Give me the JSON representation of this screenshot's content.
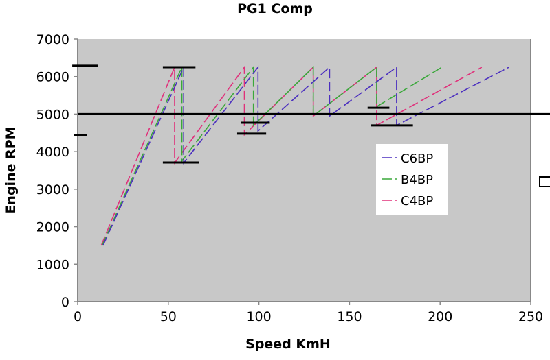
{
  "chart_data": {
    "type": "line",
    "title": "PG1 Comp",
    "xlabel": "Speed KmH",
    "ylabel": "Engine RPM",
    "xlim": [
      0,
      250
    ],
    "ylim": [
      0,
      7000
    ],
    "xticks": [
      "0",
      "50",
      "100",
      "150",
      "200",
      "250"
    ],
    "yticks": [
      "0",
      "1000",
      "2000",
      "3000",
      "4000",
      "5000",
      "6000",
      "7000"
    ],
    "grid": false,
    "plot_background": "#c8c8c8",
    "legend": {
      "position": "right",
      "entries": [
        "C6BP",
        "B4BP",
        "C4BP"
      ]
    },
    "series": [
      {
        "name": "C6BP",
        "color": "#4b2fbf",
        "x": [
          14,
          58.5,
          58.5,
          99.5,
          99.5,
          139,
          139,
          176,
          176,
          238
        ],
        "y": [
          1500,
          6250,
          3700,
          6250,
          4550,
          6250,
          4950,
          6250,
          4700,
          6250
        ]
      },
      {
        "name": "B4BP",
        "color": "#3aa83a",
        "x": [
          13.5,
          57.5,
          57.5,
          97,
          97,
          130,
          130,
          165,
          165,
          201
        ],
        "y": [
          1500,
          6250,
          3750,
          6250,
          4700,
          6250,
          4950,
          6250,
          5200,
          6250
        ]
      },
      {
        "name": "C4BP",
        "color": "#e0307a",
        "x": [
          13,
          53.5,
          53.5,
          92,
          92,
          130,
          130,
          165,
          165,
          223
        ],
        "y": [
          1500,
          6250,
          3700,
          6250,
          4450,
          6250,
          4950,
          6250,
          4700,
          6250
        ]
      }
    ],
    "reference_line": {
      "y": 5000,
      "color": "#000000"
    },
    "markers": [
      {
        "x1": -3,
        "x2": 11,
        "y": 6290
      },
      {
        "x1": -2,
        "x2": 5,
        "y": 4440
      },
      {
        "x1": 47,
        "x2": 65,
        "y": 6250
      },
      {
        "x1": 47,
        "x2": 67,
        "y": 3710
      },
      {
        "x1": 88,
        "x2": 104,
        "y": 4480
      },
      {
        "x1": 90,
        "x2": 106,
        "y": 4770
      },
      {
        "x1": 160,
        "x2": 172,
        "y": 5170
      },
      {
        "x1": 162,
        "x2": 185,
        "y": 4700
      }
    ]
  }
}
